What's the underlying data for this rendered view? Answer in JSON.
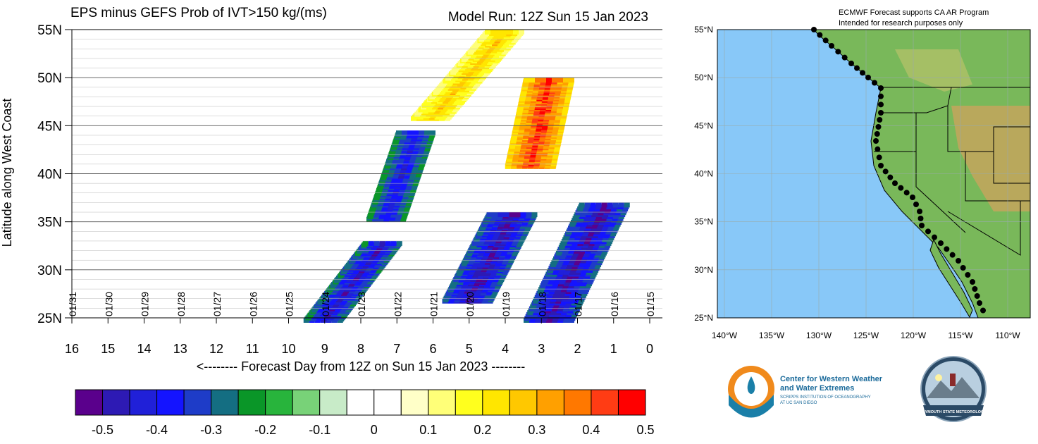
{
  "chart_data": [
    {
      "type": "heatmap",
      "title": "EPS minus GEFS Prob of IVT>150 kg/(ms)",
      "subtitle": "Model Run: 12Z Sun 15 Jan 2023",
      "xlabel": "<-------- Forecast Day from 12Z on Sun 15 Jan 2023 --------",
      "ylabel": "Latitude along West Coast",
      "x_reversed": true,
      "xlim": [
        0,
        16
      ],
      "ylim": [
        25,
        55
      ],
      "x_ticks": [
        "16",
        "15",
        "14",
        "13",
        "12",
        "11",
        "10",
        "9",
        "8",
        "7",
        "6",
        "5",
        "4",
        "3",
        "2",
        "1",
        "0"
      ],
      "y_ticks": [
        "25N",
        "30N",
        "35N",
        "40N",
        "45N",
        "50N",
        "55N"
      ],
      "date_markers": [
        "01/31",
        "01/30",
        "01/29",
        "01/28",
        "01/27",
        "01/26",
        "01/25",
        "01/24",
        "01/23",
        "01/22",
        "01/21",
        "01/20",
        "01/19",
        "01/18",
        "01/17",
        "01/16",
        "01/15"
      ],
      "features": [
        {
          "note": "negative band",
          "x": [
            7.2,
            6.4
          ],
          "y": [
            35.5,
            44.5
          ],
          "value": -0.4
        },
        {
          "note": "negative band",
          "x": [
            8.9,
            7.3
          ],
          "y": [
            25,
            33
          ],
          "value": -0.45
        },
        {
          "note": "negative band",
          "x": [
            5.0,
            3.8
          ],
          "y": [
            27,
            36
          ],
          "value": -0.5
        },
        {
          "note": "negative band",
          "x": [
            2.8,
            1.3
          ],
          "y": [
            25,
            37
          ],
          "value": -0.5
        },
        {
          "note": "positive region",
          "x": [
            6.0,
            4.0
          ],
          "y": [
            46,
            55
          ],
          "value": 0.3
        },
        {
          "note": "positive region",
          "x": [
            3.3,
            2.8
          ],
          "y": [
            41,
            50
          ],
          "value": 0.5
        }
      ],
      "colorbar": {
        "ticks": [
          "-0.5",
          "-0.4",
          "-0.3",
          "-0.2",
          "-0.1",
          "0",
          "0.1",
          "0.2",
          "0.3",
          "0.4",
          "0.5"
        ],
        "colors": [
          "#5a008c",
          "#2d1ab4",
          "#2020d8",
          "#1414ff",
          "#1e3cc8",
          "#146e82",
          "#0a9628",
          "#28b43c",
          "#78d278",
          "#c8ebc8",
          "#ffffff",
          "#ffffff",
          "#ffffc8",
          "#ffff78",
          "#ffff1e",
          "#ffe600",
          "#ffc800",
          "#ffa000",
          "#ff7800",
          "#ff3c14",
          "#ff0000"
        ]
      }
    }
  ],
  "map": {
    "title_line1": "ECMWF Forecast supports CA AR Program",
    "title_line2": "Intended for research purposes only",
    "lat_labels": [
      "55°N",
      "50°N",
      "45°N",
      "40°N",
      "35°N",
      "30°N",
      "25°N"
    ],
    "lon_labels": [
      "140°W",
      "135°W",
      "130°W",
      "125°W",
      "120°W",
      "115°W",
      "110°W"
    ],
    "ocean_color": "#88c8f8",
    "land_color": "#7ab85a"
  },
  "logos": {
    "cw3e_line1": "Center for Western Weather",
    "cw3e_line2": "and Water Extremes",
    "cw3e_line3": "SCRIPPS INSTITUTION OF OCEANOGRAPHY",
    "cw3e_line4": "AT UC SAN DIEGO",
    "psu_text": "PLYMOUTH STATE METEOROLOGY"
  }
}
